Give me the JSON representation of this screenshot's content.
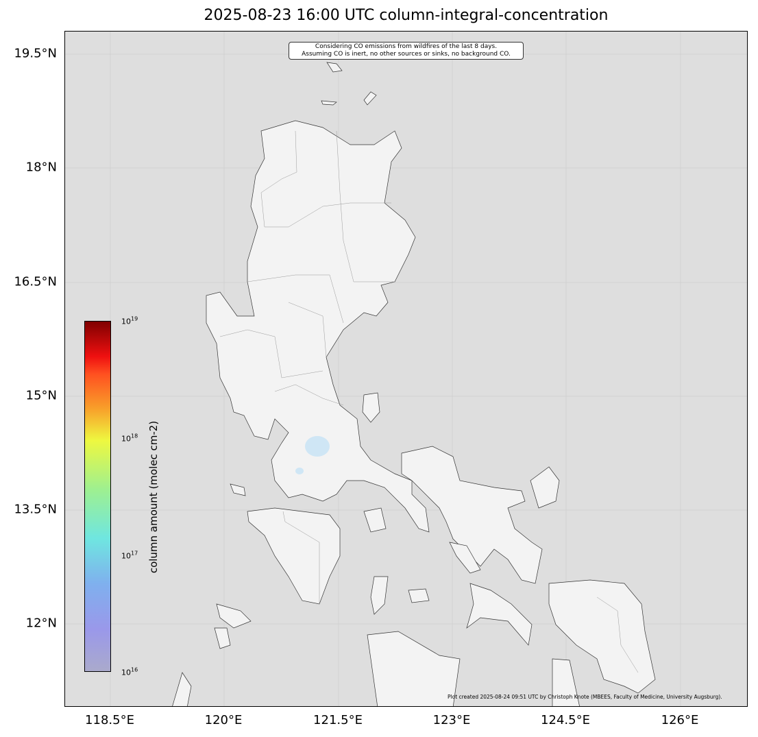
{
  "title": "2025-08-23 16:00 UTC column-integral-concentration",
  "annotation": {
    "line1": "Considering CO emissions from wildfires of the last 8 days.",
    "line2": "Assuming CO is inert, no other sources or sinks, no background CO."
  },
  "credit": "Plot created 2025-08-24 09:51 UTC by Christoph Knote (MBEES, Faculty of Medicine, University Augsburg).",
  "lat_ticks": [
    "19.5°N",
    "18°N",
    "16.5°N",
    "15°N",
    "13.5°N",
    "12°N"
  ],
  "lon_ticks": [
    "118.5°E",
    "120°E",
    "121.5°E",
    "123°E",
    "124.5°E",
    "126°E"
  ],
  "extent": {
    "lon": [
      117.9,
      126.9
    ],
    "lat": [
      10.9,
      19.8
    ]
  },
  "colorbar": {
    "label": "column amount (molec cm-2)",
    "scale": "log",
    "range": [
      1e+16,
      1e+19
    ],
    "ticks": [
      {
        "base": "10",
        "exp": "19"
      },
      {
        "base": "10",
        "exp": "18"
      },
      {
        "base": "10",
        "exp": "17"
      },
      {
        "base": "10",
        "exp": "16"
      }
    ],
    "colormap": "jet-like with transparent low end"
  },
  "colors": {
    "ocean": "#dedede",
    "land": "#f3f3f3",
    "water": "#cfe6f5"
  }
}
